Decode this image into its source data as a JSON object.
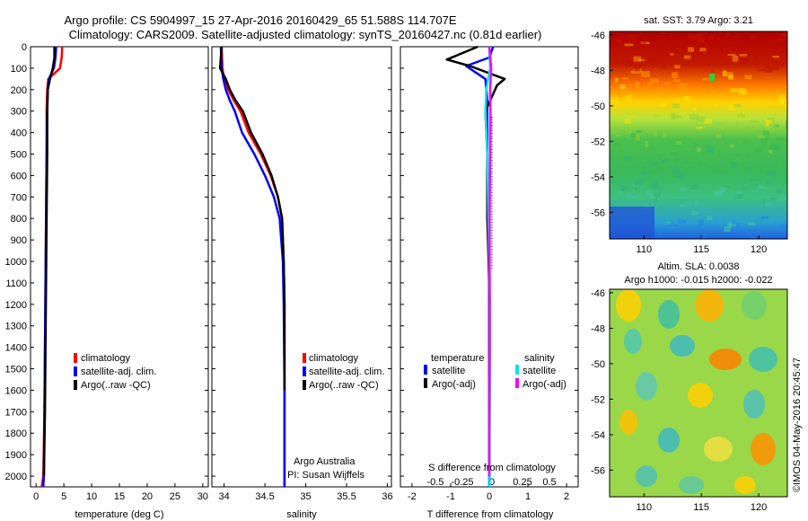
{
  "title_line1": "Argo profile: CS 5904997_15 27-Apr-2016 20160429_65 51.588S 114.707E",
  "title_line2": "Climatology: CARS2009. Satellite-adjusted climatology: synTS_20160427.nc (0.81d earlier)",
  "depth_ticks": [
    0,
    100,
    200,
    300,
    400,
    500,
    600,
    700,
    800,
    900,
    1000,
    1100,
    1200,
    1300,
    1400,
    1500,
    1600,
    1700,
    1800,
    1900,
    2000
  ],
  "colors": {
    "climatology": "#ff0000",
    "satellite": "#0000ff",
    "argo": "#000000",
    "sat_salinity": "#00e5e5",
    "argo_salinity": "#ff00ff"
  },
  "temp_panel": {
    "xlabel": "temperature (deg C)",
    "xticks": [
      "0",
      "5",
      "10",
      "15",
      "20",
      "25",
      "30"
    ],
    "legend": [
      "climatology",
      "satellite-adj. clim.",
      "Argo(..raw -QC)"
    ]
  },
  "sal_panel": {
    "xlabel": "salinity",
    "xticks": [
      "34",
      "34.5",
      "35",
      "35.5",
      "36"
    ],
    "legend": [
      "climatology",
      "satellite-adj. clim.",
      "Argo(..raw -QC)"
    ],
    "credit1": "Argo Australia",
    "credit2": "PI: Susan Wijffels"
  },
  "diff_panel": {
    "xlabel": "T difference from climatology",
    "xticks": [
      "-2",
      "-1",
      "0",
      "1",
      "2"
    ],
    "top_label": "S difference from climatology",
    "top_ticks": [
      "-0.5",
      "-0.25",
      "0",
      "0.25",
      "0.5"
    ],
    "legend_temp_title": "temperature",
    "legend_sal_title": "salinity",
    "legend_sat": "satellite",
    "legend_argo": "Argo(-adj)"
  },
  "sst_map": {
    "title": "sat. SST: 3.79 Argo: 3.21",
    "yticks": [
      "-46",
      "-48",
      "-50",
      "-52",
      "-54",
      "-56"
    ],
    "xticks": [
      "110",
      "115",
      "120"
    ]
  },
  "sla_map": {
    "title1": "Altim. SLA: 0.0038",
    "title2": "Argo h1000: -0.015 h2000: -0.022",
    "yticks": [
      "-46",
      "-48",
      "-50",
      "-52",
      "-54",
      "-56"
    ],
    "xticks": [
      "110",
      "115",
      "120"
    ]
  },
  "stamp": "©IMOS 04-May-2016 20:45:47",
  "chart_data": [
    {
      "type": "line",
      "xlabel": "temperature (deg C)",
      "xlim": [
        -1,
        31
      ],
      "ylim": [
        2050,
        0
      ],
      "series": [
        {
          "name": "climatology",
          "color": "#ff0000",
          "x": [
            4.7,
            4.6,
            4.3,
            2.2,
            2.0,
            1.9,
            1.9,
            1.8,
            1.7,
            1.6,
            1.5,
            1.3,
            1.0
          ],
          "y": [
            0,
            50,
            100,
            150,
            200,
            300,
            500,
            800,
            1100,
            1400,
            1700,
            2000,
            2050
          ]
        },
        {
          "name": "satellite-adj. clim.",
          "color": "#0000ff",
          "x": [
            3.6,
            3.5,
            3.2,
            2.3,
            2.1,
            2.0,
            1.9,
            1.8,
            1.7,
            1.6,
            1.5,
            1.4,
            1.3
          ],
          "y": [
            0,
            50,
            100,
            150,
            200,
            300,
            500,
            800,
            1100,
            1400,
            1700,
            2000,
            2050
          ]
        },
        {
          "name": "Argo(..raw -QC)",
          "color": "#000000",
          "x": [
            3.3,
            3.3,
            3.0,
            2.5,
            2.1,
            2.0,
            2.0,
            1.9,
            1.8,
            1.7,
            1.6,
            1.4
          ],
          "y": [
            0,
            50,
            100,
            150,
            200,
            300,
            500,
            800,
            1100,
            1400,
            1700,
            2000
          ]
        }
      ]
    },
    {
      "type": "line",
      "xlabel": "salinity",
      "xlim": [
        33.85,
        36.05
      ],
      "ylim": [
        2050,
        0
      ],
      "series": [
        {
          "name": "climatology",
          "color": "#ff0000",
          "x": [
            33.97,
            33.98,
            34.0,
            34.05,
            34.12,
            34.2,
            34.3,
            34.45,
            34.57,
            34.66,
            34.71,
            34.73,
            34.74,
            34.74,
            34.74
          ],
          "y": [
            0,
            100,
            150,
            200,
            250,
            300,
            400,
            500,
            600,
            700,
            800,
            1000,
            1200,
            1600,
            2050
          ]
        },
        {
          "name": "satellite-adj. clim.",
          "color": "#0000ff",
          "x": [
            33.96,
            33.97,
            33.99,
            34.02,
            34.07,
            34.13,
            34.22,
            34.37,
            34.5,
            34.61,
            34.68,
            34.72,
            34.73,
            34.74,
            34.74
          ],
          "y": [
            0,
            100,
            150,
            200,
            250,
            300,
            400,
            500,
            600,
            700,
            800,
            1000,
            1200,
            1600,
            2050
          ]
        },
        {
          "name": "Argo(..raw -QC)",
          "color": "#000000",
          "x": [
            33.97,
            33.95,
            34.02,
            34.07,
            34.14,
            34.23,
            34.33,
            34.47,
            34.58,
            34.66,
            34.71,
            34.73,
            34.74,
            34.74
          ],
          "y": [
            0,
            100,
            150,
            200,
            250,
            300,
            400,
            500,
            600,
            700,
            800,
            1000,
            1200,
            1600
          ]
        }
      ]
    },
    {
      "type": "line",
      "xlabel": "T difference from climatology",
      "xlim": [
        -2.3,
        2.3
      ],
      "ylim": [
        2050,
        0
      ],
      "series": [
        {
          "name": "temperature satellite",
          "color": "#0000ff",
          "x": [
            0.1,
            0.0,
            -0.6,
            -0.1,
            -0.05,
            -0.05,
            -0.05,
            0.0,
            0.0,
            0.0,
            0.0
          ],
          "y": [
            0,
            50,
            90,
            150,
            250,
            400,
            700,
            1000,
            1400,
            1800,
            2050
          ]
        },
        {
          "name": "temperature Argo(-adj)",
          "color": "#000000",
          "x": [
            -0.3,
            -1.1,
            -0.5,
            0.4,
            0.2,
            -0.1,
            -0.05,
            -0.05,
            0.0,
            0.0,
            0.0,
            0.0
          ],
          "y": [
            0,
            60,
            90,
            150,
            180,
            300,
            500,
            800,
            1100,
            1400,
            1800,
            2000
          ]
        },
        {
          "name": "salinity satellite",
          "color": "#00e5e5",
          "x": [
            0.0,
            0.02,
            -0.08,
            -0.1,
            -0.05,
            -0.02,
            0.0,
            0.02,
            0.02,
            0.01,
            0.01
          ],
          "y": [
            0,
            100,
            200,
            300,
            500,
            800,
            1000,
            1200,
            1500,
            1800,
            2050
          ]
        },
        {
          "name": "salinity Argo(-adj)",
          "color": "#ff00ff",
          "x": [
            0.0,
            0.05,
            0.02,
            0.03,
            0.02,
            0.01,
            0.01,
            0.01,
            0.0,
            0.0
          ],
          "y": [
            0,
            100,
            200,
            300,
            500,
            800,
            1100,
            1400,
            1800,
            2000
          ]
        }
      ]
    },
    {
      "type": "heatmap",
      "title": "sat. SST: 3.79 Argo: 3.21",
      "xlim": [
        107,
        122.5
      ],
      "ylim": [
        -57.5,
        -45.8
      ]
    },
    {
      "type": "heatmap",
      "title": "Altim. SLA: 0.0038",
      "xlim": [
        107,
        122.5
      ],
      "ylim": [
        -57.5,
        -45.8
      ]
    }
  ]
}
